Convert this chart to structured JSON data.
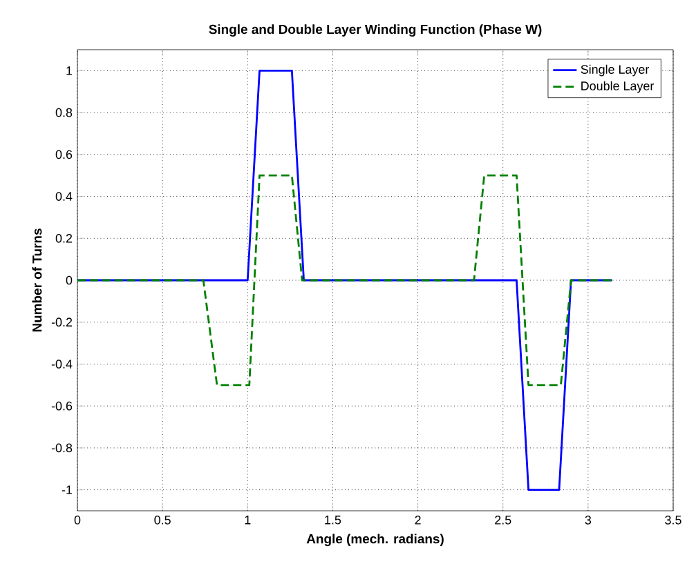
{
  "chart_data": {
    "type": "line",
    "title": "Single and Double Layer Winding Function (Phase W)",
    "xlabel": "Angle (mech. radians)",
    "ylabel": "Number of Turns",
    "series": [
      {
        "name": "Single Layer",
        "color": "#0000ff",
        "line_style": "solid",
        "x": [
          0,
          1.0,
          1.07,
          1.26,
          1.33,
          2.58,
          2.65,
          2.83,
          2.9,
          3.14
        ],
        "values": [
          0,
          0,
          1,
          1,
          0,
          0,
          -1,
          -1,
          0,
          0
        ]
      },
      {
        "name": "Double Layer",
        "color": "#008000",
        "line_style": "dashed",
        "x": [
          0,
          0.74,
          0.82,
          1.01,
          1.07,
          1.26,
          1.32,
          2.33,
          2.39,
          2.58,
          2.65,
          2.84,
          2.9,
          3.14
        ],
        "values": [
          0,
          0,
          -0.5,
          -0.5,
          0.5,
          0.5,
          0,
          0,
          0.5,
          0.5,
          -0.5,
          -0.5,
          0,
          0
        ]
      }
    ],
    "xlim": [
      0,
      3.5
    ],
    "ylim": [
      -1.1,
      1.1
    ],
    "xticks": [
      0,
      0.5,
      1,
      1.5,
      2,
      2.5,
      3,
      3.5
    ],
    "yticks": [
      -1,
      -0.8,
      -0.6,
      -0.4,
      -0.2,
      0,
      0.2,
      0.4,
      0.6,
      0.8,
      1
    ],
    "grid": true,
    "legend": "top right"
  }
}
